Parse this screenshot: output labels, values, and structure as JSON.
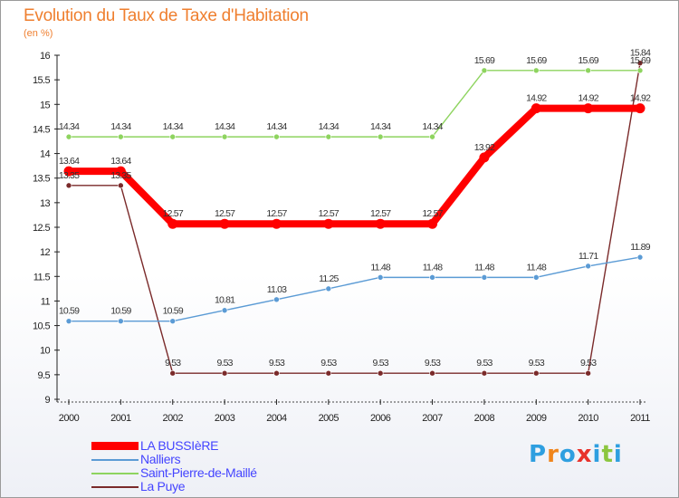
{
  "chart_data": {
    "type": "line",
    "title": "Evolution du Taux de Taxe d'Habitation",
    "ylabel": "(en %)",
    "xlabel": "",
    "categories": [
      "2000",
      "2001",
      "2002",
      "2003",
      "2004",
      "2005",
      "2006",
      "2007",
      "2008",
      "2009",
      "2010",
      "2011"
    ],
    "ylim": [
      9,
      16
    ],
    "yticks": [
      "9",
      "9.5",
      "10",
      "10.5",
      "11",
      "11.5",
      "12",
      "12.5",
      "13",
      "13.5",
      "14",
      "14.5",
      "15",
      "15.5",
      "16"
    ],
    "grid": false,
    "legend_position": "bottom-left",
    "series": [
      {
        "name": "LA BUSSIèRE",
        "color": "#ff0000",
        "values": [
          13.64,
          13.64,
          12.57,
          12.57,
          12.57,
          12.57,
          12.57,
          12.57,
          13.92,
          14.92,
          14.92,
          14.92
        ],
        "labels": [
          "13.64",
          "13.64",
          "12.57",
          "12.57",
          "12.57",
          "12.57",
          "12.57",
          "12.57",
          "13.92",
          "14.92",
          "14.92",
          "14.92"
        ]
      },
      {
        "name": "Nalliers",
        "color": "#5b9bd5",
        "values": [
          10.59,
          10.59,
          10.59,
          10.81,
          11.03,
          11.25,
          11.48,
          11.48,
          11.48,
          11.48,
          11.71,
          11.89
        ],
        "labels": [
          "10.59",
          "10.59",
          "10.59",
          "10.81",
          "11.03",
          "11.25",
          "11.48",
          "11.48",
          "11.48",
          "11.48",
          "11.71",
          "11.89"
        ]
      },
      {
        "name": "Saint-Pierre-de-Maillé",
        "color": "#8ed45f",
        "values": [
          14.34,
          14.34,
          14.34,
          14.34,
          14.34,
          14.34,
          14.34,
          14.34,
          15.69,
          15.69,
          15.69,
          15.69
        ],
        "labels": [
          "14.34",
          "14.34",
          "14.34",
          "14.34",
          "14.34",
          "14.34",
          "14.34",
          "14.34",
          "15.69",
          "15.69",
          "15.69",
          "15.69"
        ]
      },
      {
        "name": "La Puye",
        "color": "#7a2a2a",
        "values": [
          13.35,
          13.35,
          9.53,
          9.53,
          9.53,
          9.53,
          9.53,
          9.53,
          9.53,
          9.53,
          9.53,
          15.84
        ],
        "labels": [
          "13.35",
          "13.35",
          "9.53",
          "9.53",
          "9.53",
          "9.53",
          "9.53",
          "9.53",
          "9.53",
          "9.53",
          "9.53",
          "15.84"
        ]
      }
    ]
  },
  "logo": {
    "letters": [
      "P",
      "r",
      "o",
      "x",
      "i",
      "t",
      "i"
    ],
    "colors": [
      "#2e9fe0",
      "#f0851c",
      "#2e9fe0",
      "#e8322b",
      "#2e9fe0",
      "#8cc63f",
      "#2e9fe0"
    ]
  }
}
